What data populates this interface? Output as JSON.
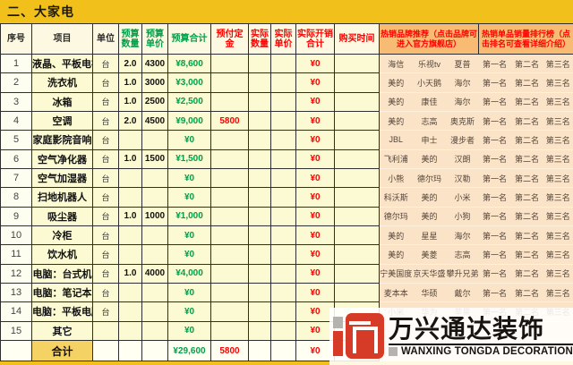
{
  "title": "二、大家电",
  "colors": {
    "page_yellow": "#f2c01b",
    "cell_yellow": "#fbfad2",
    "brand_peach": "#fae3c6",
    "group_header_orange": "#f7bb74",
    "total_gold": "#f5d264",
    "green_value": "#00a04a",
    "red_value": "#fe0000",
    "logo_red": "#d53b27"
  },
  "header": {
    "cols": [
      "序号",
      "项目",
      "单位",
      "预算数量",
      "预算单价",
      "预算合计",
      "预付定金",
      "实际数量",
      "实际单价",
      "实际开销合计",
      "购买时间"
    ],
    "brand_group": "热销品牌推荐（点击品牌可进入官方旗舰店）",
    "rank_group": "热销单品销量排行榜（点击排名可查看详细介绍）"
  },
  "rows": [
    {
      "no": "1",
      "item": "液晶、平板电视",
      "unit": "台",
      "qty": "2.0",
      "price": "4300",
      "budget": "¥8,600",
      "deposit": "",
      "actual_qty": "",
      "actual_price": "",
      "actual_total": "¥0",
      "buy_time": "",
      "brands": [
        "海信",
        "乐视tv",
        "夏普"
      ],
      "ranks": [
        "第一名",
        "第二名",
        "第三名"
      ]
    },
    {
      "no": "2",
      "item": "洗衣机",
      "unit": "台",
      "qty": "1.0",
      "price": "3000",
      "budget": "¥3,000",
      "deposit": "",
      "actual_qty": "",
      "actual_price": "",
      "actual_total": "¥0",
      "buy_time": "",
      "brands": [
        "美的",
        "小天鹅",
        "海尔"
      ],
      "ranks": [
        "第一名",
        "第二名",
        "第三名"
      ]
    },
    {
      "no": "3",
      "item": "冰箱",
      "unit": "台",
      "qty": "1.0",
      "price": "2500",
      "budget": "¥2,500",
      "deposit": "",
      "actual_qty": "",
      "actual_price": "",
      "actual_total": "¥0",
      "buy_time": "",
      "brands": [
        "美的",
        "康佳",
        "海尔"
      ],
      "ranks": [
        "第一名",
        "第二名",
        "第三名"
      ]
    },
    {
      "no": "4",
      "item": "空调",
      "unit": "台",
      "qty": "2.0",
      "price": "4500",
      "budget": "¥9,000",
      "deposit": "5800",
      "actual_qty": "",
      "actual_price": "",
      "actual_total": "¥0",
      "buy_time": "",
      "brands": [
        "美的",
        "志高",
        "奥克斯"
      ],
      "ranks": [
        "第一名",
        "第二名",
        "第三名"
      ]
    },
    {
      "no": "5",
      "item": "家庭影院音响",
      "unit": "台",
      "qty": "",
      "price": "",
      "budget": "¥0",
      "deposit": "",
      "actual_qty": "",
      "actual_price": "",
      "actual_total": "¥0",
      "buy_time": "",
      "brands": [
        "JBL",
        "申士",
        "漫步者"
      ],
      "ranks": [
        "第一名",
        "第二名",
        "第三名"
      ]
    },
    {
      "no": "6",
      "item": "空气净化器",
      "unit": "台",
      "qty": "1.0",
      "price": "1500",
      "budget": "¥1,500",
      "deposit": "",
      "actual_qty": "",
      "actual_price": "",
      "actual_total": "¥0",
      "buy_time": "",
      "brands": [
        "飞利浦",
        "美的",
        "汉朗"
      ],
      "ranks": [
        "第一名",
        "第二名",
        "第三名"
      ]
    },
    {
      "no": "7",
      "item": "空气加湿器",
      "unit": "台",
      "qty": "",
      "price": "",
      "budget": "¥0",
      "deposit": "",
      "actual_qty": "",
      "actual_price": "",
      "actual_total": "¥0",
      "buy_time": "",
      "brands": [
        "小熊",
        "德尔玛",
        "汉勒"
      ],
      "ranks": [
        "第一名",
        "第二名",
        "第三名"
      ]
    },
    {
      "no": "8",
      "item": "扫地机器人",
      "unit": "台",
      "qty": "",
      "price": "",
      "budget": "¥0",
      "deposit": "",
      "actual_qty": "",
      "actual_price": "",
      "actual_total": "¥0",
      "buy_time": "",
      "brands": [
        "科沃斯",
        "美的",
        "小米"
      ],
      "ranks": [
        "第一名",
        "第二名",
        "第三名"
      ]
    },
    {
      "no": "9",
      "item": "吸尘器",
      "unit": "台",
      "qty": "1.0",
      "price": "1000",
      "budget": "¥1,000",
      "deposit": "",
      "actual_qty": "",
      "actual_price": "",
      "actual_total": "¥0",
      "buy_time": "",
      "brands": [
        "德尔玛",
        "美的",
        "小狗"
      ],
      "ranks": [
        "第一名",
        "第二名",
        "第三名"
      ]
    },
    {
      "no": "10",
      "item": "冷柜",
      "unit": "台",
      "qty": "",
      "price": "",
      "budget": "¥0",
      "deposit": "",
      "actual_qty": "",
      "actual_price": "",
      "actual_total": "¥0",
      "buy_time": "",
      "brands": [
        "美的",
        "星星",
        "海尔"
      ],
      "ranks": [
        "第一名",
        "第二名",
        "第三名"
      ]
    },
    {
      "no": "11",
      "item": "饮水机",
      "unit": "台",
      "qty": "",
      "price": "",
      "budget": "¥0",
      "deposit": "",
      "actual_qty": "",
      "actual_price": "",
      "actual_total": "¥0",
      "buy_time": "",
      "brands": [
        "美的",
        "美菱",
        "志高"
      ],
      "ranks": [
        "第一名",
        "第二名",
        "第三名"
      ]
    },
    {
      "no": "12",
      "item": "电脑：台式机",
      "unit": "台",
      "qty": "1.0",
      "price": "4000",
      "budget": "¥4,000",
      "deposit": "",
      "actual_qty": "",
      "actual_price": "",
      "actual_total": "¥0",
      "buy_time": "",
      "brands": [
        "宁美国度",
        "京天华盛",
        "攀升兄弟"
      ],
      "ranks": [
        "第一名",
        "第二名",
        "第三名"
      ]
    },
    {
      "no": "13",
      "item": "电脑：笔记本",
      "unit": "台",
      "qty": "",
      "price": "",
      "budget": "¥0",
      "deposit": "",
      "actual_qty": "",
      "actual_price": "",
      "actual_total": "¥0",
      "buy_time": "",
      "brands": [
        "麦本本",
        "华硕",
        "戴尔"
      ],
      "ranks": [
        "第一名",
        "第二名",
        "第三名"
      ]
    },
    {
      "no": "14",
      "item": "电脑：平板电脑",
      "unit": "台",
      "qty": "",
      "price": "",
      "budget": "¥0",
      "deposit": "",
      "actual_qty": "",
      "actual_price": "",
      "actual_total": "¥0",
      "buy_time": "",
      "brands": [
        "小米",
        "华为",
        "苹果"
      ],
      "ranks": [
        "第一名",
        "第二名",
        "第三名"
      ]
    },
    {
      "no": "15",
      "item": "其它",
      "unit": "",
      "qty": "",
      "price": "",
      "budget": "¥0",
      "deposit": "",
      "actual_qty": "",
      "actual_price": "",
      "actual_total": "¥0",
      "buy_time": "",
      "brands": [
        "",
        "",
        ""
      ],
      "ranks": [
        "",
        "",
        ""
      ]
    }
  ],
  "total": {
    "label": "合计",
    "budget": "¥29,600",
    "deposit": "5800",
    "actual_total": "¥0"
  },
  "watermark": {
    "cn": "万兴通达装饰",
    "en": "WANXING TONGDA DECORATION"
  }
}
